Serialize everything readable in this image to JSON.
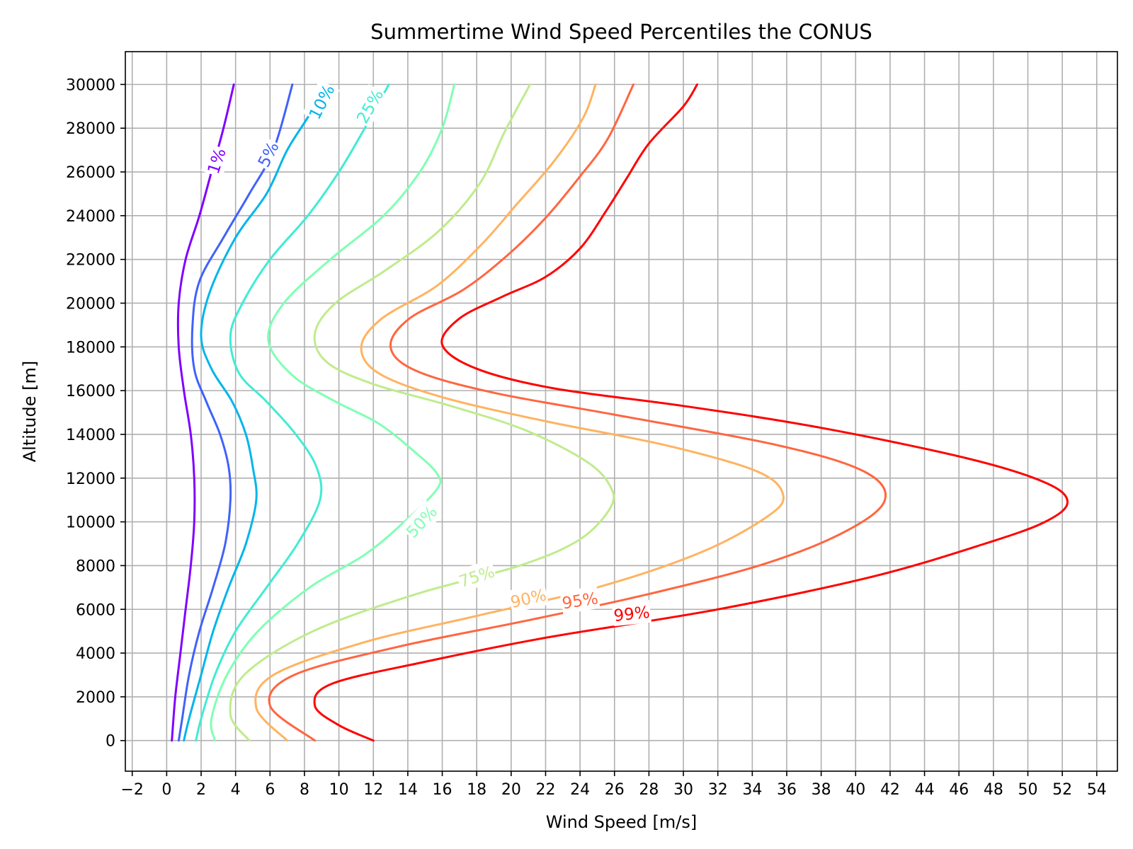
{
  "chart_data": {
    "type": "line",
    "title": "Summertime Wind Speed Percentiles the CONUS",
    "xlabel": "Wind Speed [m/s]",
    "ylabel": "Altitude [m]",
    "xlim": [
      -2.4,
      55.2
    ],
    "ylim": [
      -1400,
      31500
    ],
    "x_ticks": [
      -2,
      0,
      2,
      4,
      6,
      8,
      10,
      12,
      14,
      16,
      18,
      20,
      22,
      24,
      26,
      28,
      30,
      32,
      34,
      36,
      38,
      40,
      42,
      44,
      46,
      48,
      50,
      52,
      54
    ],
    "x_tick_labels": [
      "−2",
      "0",
      "2",
      "4",
      "6",
      "8",
      "10",
      "12",
      "14",
      "16",
      "18",
      "20",
      "22",
      "24",
      "26",
      "28",
      "30",
      "32",
      "34",
      "36",
      "38",
      "40",
      "42",
      "44",
      "46",
      "48",
      "50",
      "52",
      "54"
    ],
    "y_ticks": [
      0,
      2000,
      4000,
      6000,
      8000,
      10000,
      12000,
      14000,
      16000,
      18000,
      20000,
      22000,
      24000,
      26000,
      28000,
      30000
    ],
    "y_tick_labels": [
      "0",
      "2000",
      "4000",
      "6000",
      "8000",
      "10000",
      "12000",
      "14000",
      "16000",
      "18000",
      "20000",
      "22000",
      "24000",
      "26000",
      "28000",
      "30000"
    ],
    "grid": true,
    "series": [
      {
        "name": "1%",
        "color": "#8000ff",
        "label_at": [
          2.9,
          26500
        ],
        "label_angle": -72,
        "points": [
          [
            0.3,
            0
          ],
          [
            0.5,
            2000
          ],
          [
            0.8,
            4000
          ],
          [
            1.1,
            6000
          ],
          [
            1.4,
            8000
          ],
          [
            1.6,
            10000
          ],
          [
            1.6,
            12000
          ],
          [
            1.4,
            14000
          ],
          [
            1.0,
            16000
          ],
          [
            0.7,
            18000
          ],
          [
            0.7,
            20000
          ],
          [
            1.1,
            22000
          ],
          [
            1.9,
            24000
          ],
          [
            2.6,
            26000
          ],
          [
            3.3,
            28000
          ],
          [
            3.9,
            30000
          ]
        ]
      },
      {
        "name": "5%",
        "color": "#4062fa",
        "label_at": [
          5.9,
          26800
        ],
        "label_angle": -63,
        "points": [
          [
            0.7,
            0
          ],
          [
            0.9,
            1000
          ],
          [
            1.3,
            3000
          ],
          [
            1.9,
            5000
          ],
          [
            2.7,
            7000
          ],
          [
            3.4,
            9000
          ],
          [
            3.7,
            11000
          ],
          [
            3.6,
            12500
          ],
          [
            3.1,
            14000
          ],
          [
            2.3,
            15500
          ],
          [
            1.6,
            17000
          ],
          [
            1.5,
            19000
          ],
          [
            1.9,
            21000
          ],
          [
            3.3,
            23000
          ],
          [
            4.8,
            25000
          ],
          [
            6.2,
            27000
          ],
          [
            7.3,
            30000
          ]
        ]
      },
      {
        "name": "10%",
        "color": "#00b5eb",
        "label_at": [
          9.0,
          29200
        ],
        "label_angle": -63,
        "points": [
          [
            1.0,
            0
          ],
          [
            1.3,
            1000
          ],
          [
            2.0,
            3000
          ],
          [
            2.7,
            5000
          ],
          [
            3.6,
            7000
          ],
          [
            4.6,
            9000
          ],
          [
            5.2,
            11000
          ],
          [
            5.0,
            12500
          ],
          [
            4.6,
            14000
          ],
          [
            3.8,
            15500
          ],
          [
            2.6,
            17000
          ],
          [
            2.0,
            18500
          ],
          [
            2.5,
            20500
          ],
          [
            4.0,
            23000
          ],
          [
            5.8,
            25000
          ],
          [
            7.0,
            27000
          ],
          [
            8.2,
            28500
          ],
          [
            9.0,
            29600
          ]
        ]
      },
      {
        "name": "25%",
        "color": "#40ecd4",
        "label_at": [
          11.8,
          29000
        ],
        "label_angle": -60,
        "points": [
          [
            1.7,
            0
          ],
          [
            2.0,
            1000
          ],
          [
            2.8,
            3000
          ],
          [
            4.0,
            5000
          ],
          [
            5.8,
            7000
          ],
          [
            7.6,
            9000
          ],
          [
            8.9,
            11000
          ],
          [
            8.7,
            12500
          ],
          [
            7.5,
            14000
          ],
          [
            5.8,
            15500
          ],
          [
            4.2,
            16800
          ],
          [
            3.7,
            18500
          ],
          [
            4.4,
            20000
          ],
          [
            6.0,
            22000
          ],
          [
            8.2,
            24000
          ],
          [
            10.0,
            26000
          ],
          [
            11.5,
            28000
          ],
          [
            12.9,
            30000
          ]
        ]
      },
      {
        "name": "50%",
        "color": "#80ffb4",
        "label_at": [
          14.8,
          10000
        ],
        "label_angle": -47,
        "points": [
          [
            2.8,
            0
          ],
          [
            2.6,
            1000
          ],
          [
            3.5,
            3000
          ],
          [
            5.3,
            5000
          ],
          [
            8.3,
            7000
          ],
          [
            11.5,
            8500
          ],
          [
            13.8,
            10000
          ],
          [
            15.7,
            11500
          ],
          [
            15.7,
            12200
          ],
          [
            14.4,
            13200
          ],
          [
            12.3,
            14500
          ],
          [
            9.8,
            15500
          ],
          [
            7.3,
            16700
          ],
          [
            5.9,
            18300
          ],
          [
            6.8,
            20000
          ],
          [
            9.5,
            22000
          ],
          [
            12.6,
            24000
          ],
          [
            14.7,
            26000
          ],
          [
            16.0,
            28000
          ],
          [
            16.7,
            30000
          ]
        ]
      },
      {
        "name": "75%",
        "color": "#c0eb8d",
        "label_at": [
          18.0,
          7500
        ],
        "label_angle": -18,
        "points": [
          [
            4.8,
            0
          ],
          [
            3.7,
            1200
          ],
          [
            4.5,
            3000
          ],
          [
            8.5,
            5000
          ],
          [
            14.5,
            6700
          ],
          [
            20.5,
            8000
          ],
          [
            24.0,
            9200
          ],
          [
            25.8,
            10700
          ],
          [
            25.7,
            11700
          ],
          [
            24.3,
            12800
          ],
          [
            20.8,
            14200
          ],
          [
            16.5,
            15300
          ],
          [
            12.0,
            16300
          ],
          [
            9.3,
            17300
          ],
          [
            8.6,
            18600
          ],
          [
            9.8,
            20000
          ],
          [
            12.7,
            21500
          ],
          [
            15.8,
            23300
          ],
          [
            18.2,
            25500
          ],
          [
            19.6,
            27800
          ],
          [
            21.1,
            30000
          ]
        ]
      },
      {
        "name": "90%",
        "color": "#ffb360",
        "label_at": [
          21.0,
          6500
        ],
        "label_angle": -13,
        "points": [
          [
            7.0,
            0
          ],
          [
            5.2,
            1500
          ],
          [
            6.2,
            3000
          ],
          [
            11.5,
            4500
          ],
          [
            18.0,
            5700
          ],
          [
            25.0,
            7000
          ],
          [
            31.0,
            8600
          ],
          [
            34.8,
            10200
          ],
          [
            35.8,
            11200
          ],
          [
            34.3,
            12300
          ],
          [
            29.0,
            13500
          ],
          [
            22.0,
            14600
          ],
          [
            16.0,
            15700
          ],
          [
            12.3,
            16800
          ],
          [
            11.3,
            18000
          ],
          [
            12.5,
            19300
          ],
          [
            15.7,
            20800
          ],
          [
            18.3,
            22700
          ],
          [
            20.3,
            24500
          ],
          [
            22.5,
            26500
          ],
          [
            24.2,
            28500
          ],
          [
            24.9,
            30000
          ]
        ]
      },
      {
        "name": "95%",
        "color": "#ff6640",
        "label_at": [
          24.0,
          6400
        ],
        "label_angle": -9,
        "points": [
          [
            8.6,
            0
          ],
          [
            6.0,
            1600
          ],
          [
            7.4,
            3000
          ],
          [
            13.5,
            4300
          ],
          [
            21.0,
            5500
          ],
          [
            28.0,
            6700
          ],
          [
            34.8,
            8100
          ],
          [
            39.5,
            9600
          ],
          [
            41.7,
            11000
          ],
          [
            40.5,
            12300
          ],
          [
            35.5,
            13500
          ],
          [
            26.0,
            14900
          ],
          [
            19.0,
            15900
          ],
          [
            14.5,
            16900
          ],
          [
            13.0,
            18000
          ],
          [
            14.1,
            19300
          ],
          [
            17.2,
            20600
          ],
          [
            19.8,
            22200
          ],
          [
            22.0,
            23900
          ],
          [
            23.9,
            25700
          ],
          [
            25.6,
            27500
          ],
          [
            27.1,
            30000
          ]
        ]
      },
      {
        "name": "99%",
        "color": "#ff0000",
        "label_at": [
          27.0,
          5800
        ],
        "label_angle": -6,
        "points": [
          [
            12.0,
            0
          ],
          [
            10.0,
            700
          ],
          [
            8.6,
            1600
          ],
          [
            9.6,
            2600
          ],
          [
            15.0,
            3600
          ],
          [
            22.0,
            4700
          ],
          [
            32.0,
            6000
          ],
          [
            41.0,
            7500
          ],
          [
            47.5,
            9000
          ],
          [
            51.0,
            10000
          ],
          [
            52.3,
            10900
          ],
          [
            51.0,
            11800
          ],
          [
            46.5,
            12900
          ],
          [
            38.0,
            14300
          ],
          [
            30.0,
            15300
          ],
          [
            22.5,
            16100
          ],
          [
            18.0,
            17000
          ],
          [
            16.0,
            18100
          ],
          [
            17.0,
            19300
          ],
          [
            19.5,
            20300
          ],
          [
            22.0,
            21200
          ],
          [
            24.0,
            22500
          ],
          [
            25.5,
            24200
          ],
          [
            26.7,
            25700
          ],
          [
            28.0,
            27300
          ],
          [
            30.0,
            29000
          ],
          [
            30.8,
            30000
          ]
        ]
      }
    ]
  }
}
